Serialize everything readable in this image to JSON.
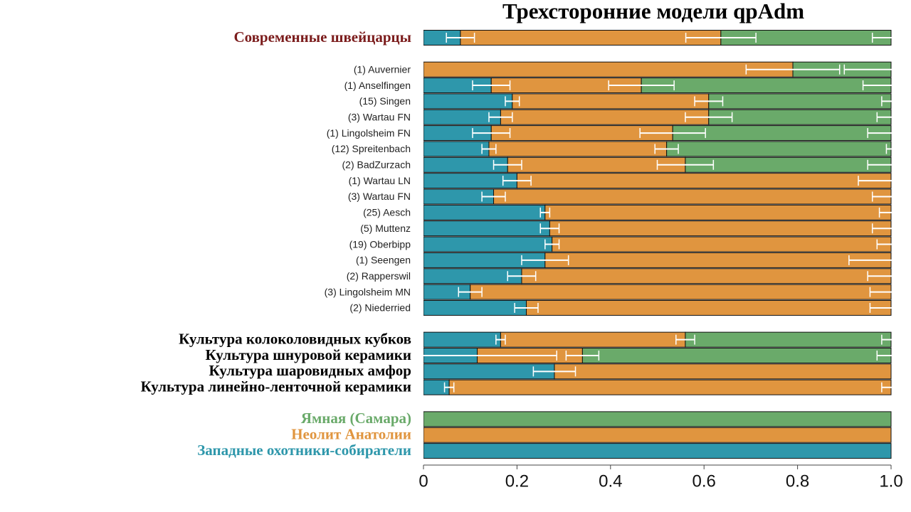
{
  "chart_data": {
    "type": "stacked-bar-h",
    "title": "Трехсторонние модели qpAdm",
    "categories": [
      "Современные швейцарцы",
      null,
      "(1) Auvernier",
      "(1) Anselfingen",
      "(15) Singen",
      "(3) Wartau FN",
      "(1) Lingolsheim FN",
      "(12) Spreitenbach",
      "(2) BadZurzach",
      "(1) Wartau LN",
      "(3) Wartau FN",
      "(25) Aesch",
      "(5) Muttenz",
      "(19) Oberbipp",
      "(1) Seengen",
      "(2) Rapperswil",
      "(3) Lingolsheim MN",
      "(2) Niederried",
      null,
      "Культура колоколовидных кубков",
      "Культура шнуровой керамики",
      "Культура шаровидных амфор",
      "Культура линейно-ленточной керамики",
      null,
      "Ямная (Самара)",
      "Неолит Анатолии",
      "Западные охотники-собиратели"
    ],
    "label_colors": [
      "#7b1c1c",
      null,
      "#222222",
      "#222222",
      "#222222",
      "#222222",
      "#222222",
      "#222222",
      "#222222",
      "#222222",
      "#222222",
      "#222222",
      "#222222",
      "#222222",
      "#222222",
      "#222222",
      "#222222",
      "#222222",
      null,
      "#000000",
      "#000000",
      "#000000",
      "#000000",
      null,
      "#6aaa6a",
      "#e0953f",
      "#2e97ab"
    ],
    "series": [
      {
        "color": "#2e97ab",
        "values": [
          0.079,
          null,
          0,
          0.145,
          0.19,
          0.165,
          0.145,
          0.14,
          0.18,
          0.2,
          0.15,
          0.26,
          0.27,
          0.275,
          0.26,
          0.21,
          0.1,
          0.22,
          null,
          0.165,
          0.115,
          0.28,
          0.055,
          null,
          0,
          0,
          1
        ],
        "errors": [
          0.03,
          null,
          null,
          0.04,
          0.015,
          0.025,
          0.04,
          0.015,
          0.03,
          0.03,
          0.025,
          0.01,
          0.02,
          0.015,
          0.05,
          0.03,
          0.025,
          0.025,
          null,
          0.01,
          0.17,
          0.045,
          0.01,
          null,
          null,
          null,
          null
        ]
      },
      {
        "color": "#e0953f",
        "values": [
          0.557,
          null,
          0.79,
          0.321,
          0.42,
          0.445,
          0.388,
          0.38,
          0.38,
          0.8,
          0.85,
          0.74,
          0.73,
          0.725,
          0.74,
          0.79,
          0.9,
          0.78,
          null,
          0.395,
          0.225,
          0.72,
          0.945,
          null,
          0,
          1,
          0
        ],
        "errors": [
          0.075,
          null,
          0.1,
          0.07,
          0.03,
          0.05,
          0.07,
          0.025,
          0.06,
          0.07,
          0.04,
          0.025,
          0.04,
          0.03,
          0.09,
          0.05,
          0.045,
          0.045,
          null,
          0.02,
          0.035,
          null,
          0.02,
          null,
          null,
          null,
          null
        ]
      },
      {
        "color": "#6aaa6a",
        "values": [
          0.364,
          null,
          0.21,
          0.534,
          0.39,
          0.39,
          0.467,
          0.48,
          0.44,
          0,
          0,
          0,
          0,
          0,
          0,
          0,
          0,
          0,
          null,
          0.44,
          0.66,
          0,
          0,
          null,
          1,
          0,
          0
        ],
        "errors": [
          0.04,
          null,
          0.1,
          0.06,
          0.02,
          0.03,
          0.05,
          0.01,
          0.05,
          null,
          null,
          null,
          null,
          null,
          null,
          null,
          null,
          null,
          null,
          0.02,
          0.03,
          null,
          null,
          null,
          null,
          null,
          null
        ]
      }
    ],
    "xlim": [
      0,
      1
    ],
    "xticks": [
      0,
      0.2,
      0.4,
      0.6,
      0.8,
      {
        "value": 1,
        "label": "1.0"
      }
    ]
  }
}
